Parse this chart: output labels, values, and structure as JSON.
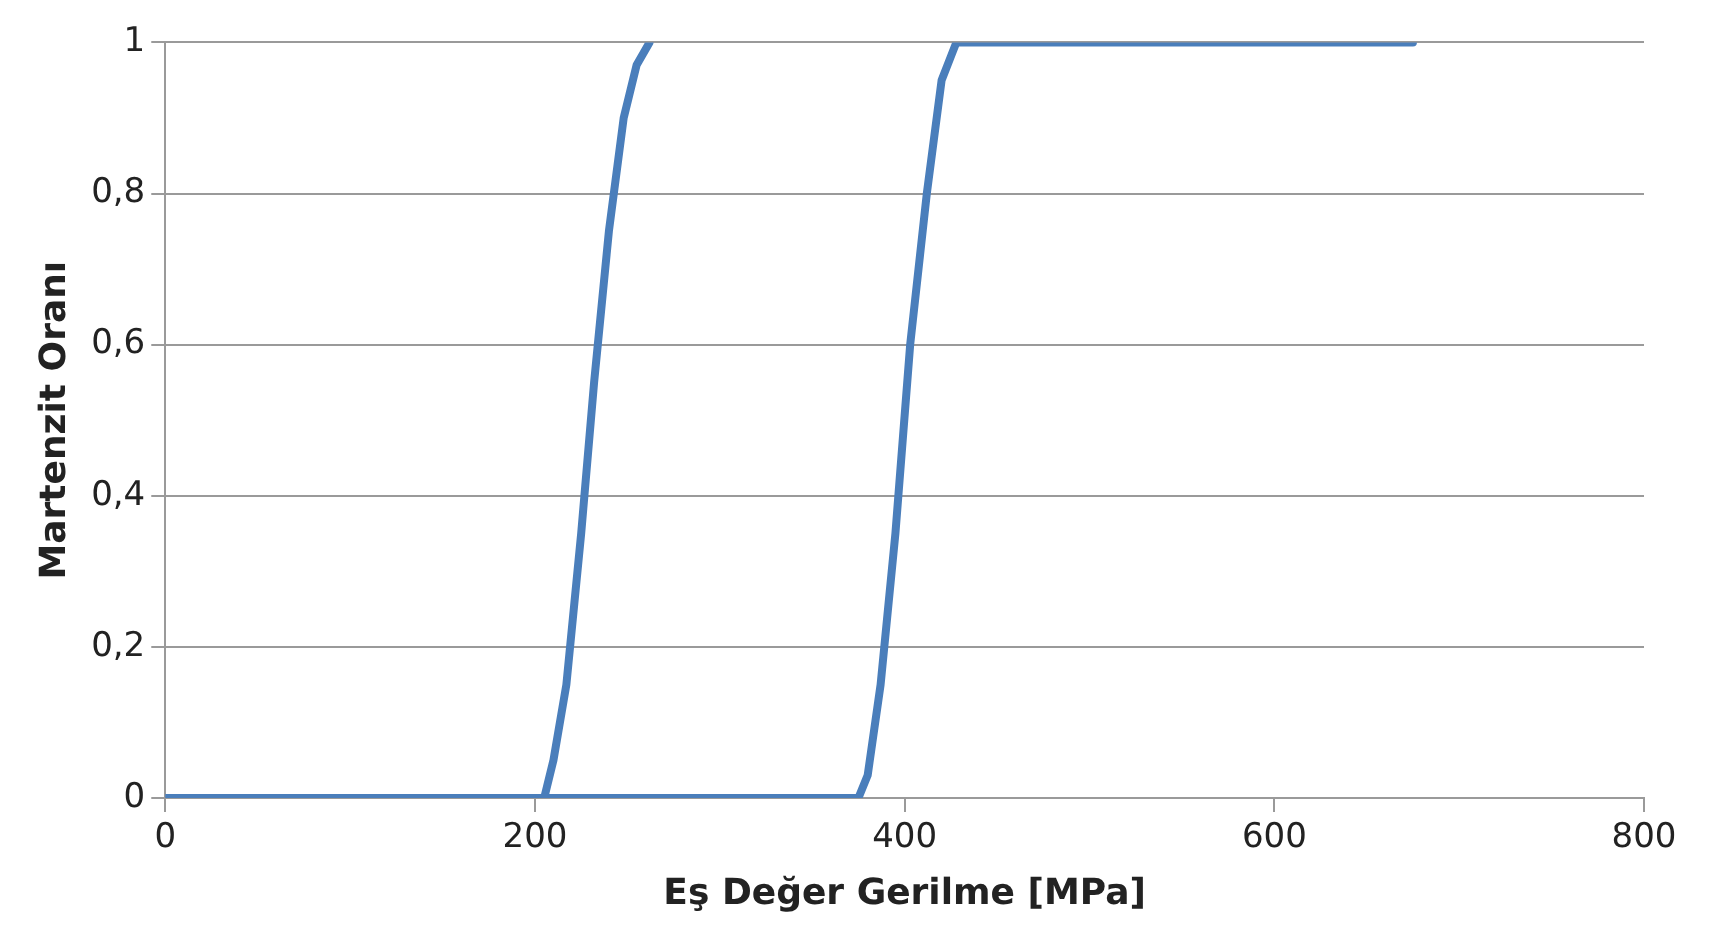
{
  "chart_data": {
    "type": "line",
    "xlabel": "Eş Değer Gerilme [MPa]",
    "ylabel": "Martenzit Oranı",
    "series": [
      {
        "color": "#4a7ebb",
        "x": [
          0,
          375,
          380,
          387,
          395,
          403,
          412,
          420,
          428,
          675
        ],
        "values": [
          0,
          0,
          0.03,
          0.15,
          0.35,
          0.6,
          0.8,
          0.95,
          1,
          1
        ]
      },
      {
        "color": "#4a7ebb",
        "x": [
          205,
          210,
          217,
          225,
          232,
          240,
          248,
          255,
          262
        ],
        "values": [
          0,
          0.05,
          0.15,
          0.35,
          0.55,
          0.75,
          0.9,
          0.97,
          1
        ]
      }
    ],
    "xlim": [
      0,
      800
    ],
    "xticks": [
      0,
      200,
      400,
      600,
      800
    ],
    "ylim": [
      0,
      1
    ],
    "yticks": [
      0,
      {
        "value": 0.2,
        "label": "0,2"
      },
      {
        "value": 0.4,
        "label": "0,4"
      },
      {
        "value": 0.6,
        "label": "0,6"
      },
      {
        "value": 0.8,
        "label": "0,8"
      },
      1
    ],
    "grid": "y",
    "legend": false,
    "marker": "none",
    "line_style": "solid"
  }
}
